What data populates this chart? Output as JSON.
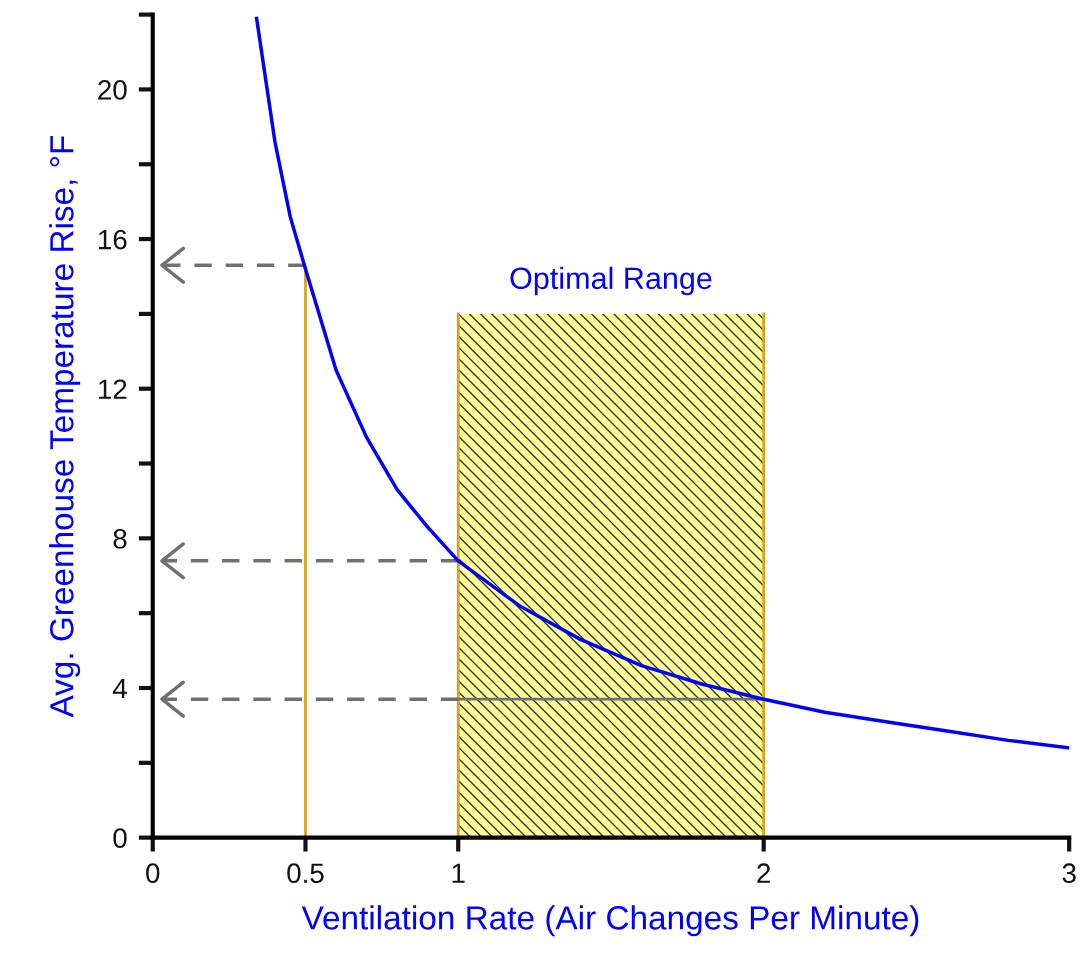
{
  "chart_data": {
    "type": "line",
    "xlabel": "Ventilation Rate (Air Changes Per Minute)",
    "ylabel": "Avg. Greenhouse Temperature Rise, °F",
    "xlim": [
      0,
      3
    ],
    "xticks": [
      0,
      0.5,
      1,
      2,
      3
    ],
    "ylim": [
      0,
      22
    ],
    "yticks": [
      0,
      {
        "value": 2,
        "label": null
      },
      4,
      {
        "value": 6,
        "label": null
      },
      8,
      {
        "value": 10,
        "label": null
      },
      12,
      {
        "value": 14,
        "label": null
      },
      16,
      {
        "value": 18,
        "label": null
      },
      20,
      {
        "value": 22,
        "label": null
      }
    ],
    "grid": false,
    "legend": false,
    "marker": "none",
    "line_style": "solid",
    "series": [
      {
        "name": "Optimal Range",
        "type": "area",
        "color": "#ffff99",
        "x": [
          1,
          2
        ],
        "values": [
          14,
          14
        ]
      },
      {
        "type": "line",
        "color": "#d9a21b",
        "x": [
          1,
          1
        ],
        "values": [
          0,
          14
        ]
      },
      {
        "type": "line",
        "color": "#d9a21b",
        "x": [
          2,
          2
        ],
        "values": [
          0,
          14
        ]
      },
      {
        "type": "line",
        "color": "#d9a21b",
        "x": [
          0.5,
          0.5
        ],
        "values": [
          0,
          15.2
        ]
      },
      {
        "type": "line",
        "color": "#707070",
        "x": [
          1,
          2
        ],
        "values": [
          3.7,
          3.7
        ]
      },
      {
        "type": "line",
        "color": "#707070",
        "line_style": "dashed",
        "x": [
          0.5,
          0.03
        ],
        "values": [
          15.3,
          15.3
        ]
      },
      {
        "type": "line",
        "color": "#707070",
        "line_style": "dashed",
        "x": [
          1,
          0.03
        ],
        "values": [
          7.4,
          7.4
        ]
      },
      {
        "type": "line",
        "color": "#707070",
        "line_style": "dashed",
        "x": [
          1,
          0.03
        ],
        "values": [
          3.7,
          3.7
        ]
      },
      {
        "color": "#0000ff",
        "x": [
          0.34,
          0.4,
          0.45,
          0.5,
          0.6,
          0.7,
          0.8,
          0.9,
          1.0,
          1.2,
          1.4,
          1.6,
          1.8,
          2.0,
          2.2,
          2.4,
          2.6,
          2.8,
          3.0
        ],
        "values": [
          21.9,
          18.6,
          16.6,
          15.2,
          12.5,
          10.7,
          9.3,
          8.3,
          7.4,
          6.2,
          5.3,
          4.6,
          4.1,
          3.7,
          3.35,
          3.1,
          2.85,
          2.6,
          2.4
        ]
      }
    ]
  }
}
